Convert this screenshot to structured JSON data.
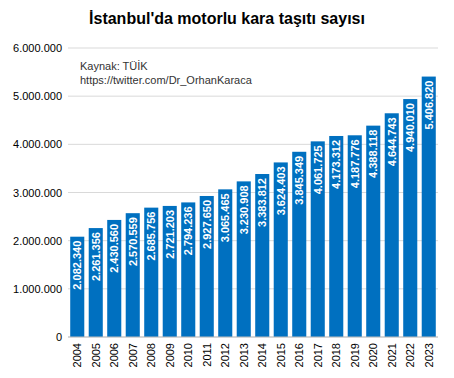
{
  "chart_data": {
    "type": "bar",
    "title": "İstanbul'da motorlu kara taşıtı sayısı",
    "annotations": [
      "Kaynak: TÜİK",
      "https://twitter.com/Dr_OrhanKaraca"
    ],
    "categories": [
      "2004",
      "2005",
      "2006",
      "2007",
      "2008",
      "2009",
      "2010",
      "2011",
      "2012",
      "2013",
      "2014",
      "2015",
      "2016",
      "2017",
      "2018",
      "2019",
      "2020",
      "2021",
      "2022",
      "2023"
    ],
    "values": [
      2082340,
      2261356,
      2430560,
      2570559,
      2685756,
      2721203,
      2794236,
      2927650,
      3065465,
      3230908,
      3383812,
      3624403,
      3845349,
      4061725,
      4173312,
      4187776,
      4388118,
      4644743,
      4940010,
      5406820
    ],
    "value_labels": [
      "2.082.340",
      "2.261.356",
      "2.430.560",
      "2.570.559",
      "2.685.756",
      "2.721.203",
      "2.794.236",
      "2.927.650",
      "3.065.465",
      "3.230.908",
      "3.383.812",
      "3.624.403",
      "3.845.349",
      "4.061.725",
      "4.173.312",
      "4.187.776",
      "4.388.118",
      "4.644.743",
      "4.940.010",
      "5.406.820"
    ],
    "color": "#0070c0",
    "ylim": [
      0,
      6000000
    ],
    "yticks": [
      0,
      {
        "value": 1000000,
        "label": "1.000.000"
      },
      {
        "value": 2000000,
        "label": "2.000.000"
      },
      {
        "value": 3000000,
        "label": "3.000.000"
      },
      {
        "value": 4000000,
        "label": "4.000.000"
      },
      {
        "value": 5000000,
        "label": "5.000.000"
      },
      {
        "value": 6000000,
        "label": "6.000.000"
      }
    ],
    "grid": true,
    "data_labels": true
  }
}
